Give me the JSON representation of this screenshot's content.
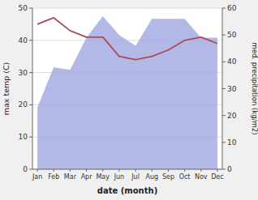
{
  "chart_data": {
    "type": "line",
    "xlabel": "date (month)",
    "ylabel": "max temp (C)",
    "y2label": "med. precipitation (kg/m2)",
    "categories": [
      "Jan",
      "Feb",
      "Mar",
      "Apr",
      "May",
      "Jun",
      "Jul",
      "Aug",
      "Sep",
      "Oct",
      "Nov",
      "Dec"
    ],
    "series": [
      {
        "type": "area",
        "axis": "y2",
        "color": "#a0a8e0",
        "values": [
          23,
          38,
          37,
          49,
          57,
          50,
          46,
          56,
          56,
          56,
          49,
          49
        ]
      },
      {
        "type": "line",
        "color": "#b04858",
        "values": [
          45,
          47,
          43,
          41,
          41,
          35,
          34,
          35,
          37,
          40,
          41,
          39
        ]
      }
    ],
    "ylim": [
      0,
      50
    ],
    "yticks": [
      0,
      10,
      20,
      30,
      40,
      50
    ],
    "y2lim": [
      0,
      60
    ],
    "y2ticks": [
      0,
      10,
      20,
      30,
      40,
      50,
      60
    ],
    "grid": true
  }
}
